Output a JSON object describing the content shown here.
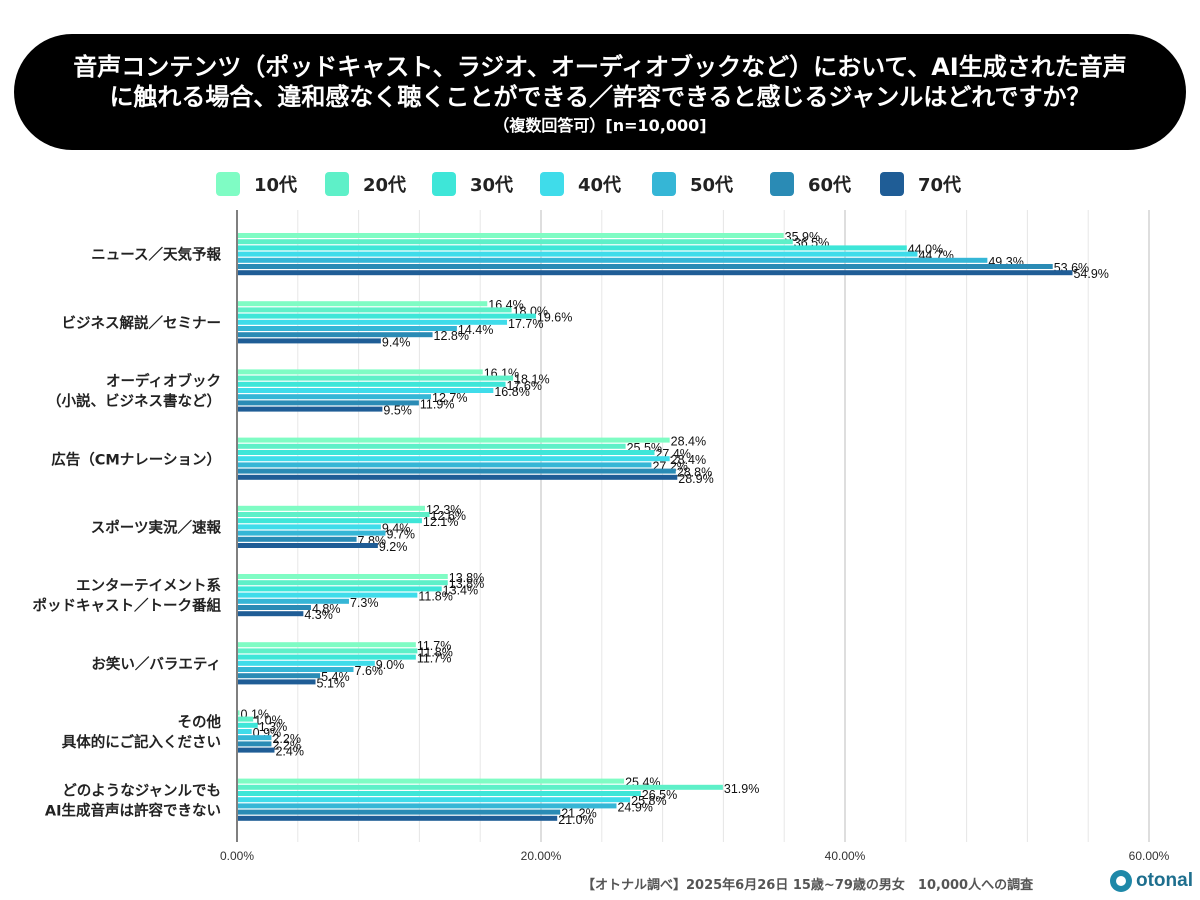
{
  "title": {
    "line1": "音声コンテンツ（ポッドキャスト、ラジオ、オーディオブックなど）において、AI生成された音声",
    "line2": "に触れる場合、違和感なく聴くことができる／許容できると感じるジャンルはどれですか？",
    "line3": "（複数回答可）[n=10,000]"
  },
  "footer": {
    "note": "【オトナル調べ】2025年6月26日 15歳~79歳の男女　10,000人への調査",
    "brand": "otonal"
  },
  "chart_data": {
    "type": "bar",
    "orientation": "horizontal",
    "xlim": [
      0,
      60
    ],
    "x_ticks": [
      "0.00%",
      "20.00%",
      "40.00%",
      "60.00%"
    ],
    "x_tick_values": [
      0,
      20,
      40,
      60
    ],
    "grid": true,
    "legend_position": "top",
    "categories": [
      [
        "ニュース／天気予報"
      ],
      [
        "ビジネス解説／セミナー"
      ],
      [
        "オーディオブック",
        "（小説、ビジネス書など）"
      ],
      [
        "広告（CMナレーション）"
      ],
      [
        "スポーツ実況／速報"
      ],
      [
        "エンターテイメント系",
        "ポッドキャスト／トーク番組"
      ],
      [
        "お笑い／バラエティ"
      ],
      [
        "その他",
        "具体的にご記入ください"
      ],
      [
        "どのようなジャンルでも",
        "AI生成音声は許容できない"
      ]
    ],
    "series": [
      {
        "name": "10代",
        "color": "#7ffcc4",
        "values": [
          35.9,
          16.4,
          16.1,
          28.4,
          12.3,
          13.8,
          11.7,
          0.1,
          25.4
        ]
      },
      {
        "name": "20代",
        "color": "#5ef0c8",
        "values": [
          36.5,
          18.0,
          18.1,
          25.5,
          12.6,
          13.8,
          11.8,
          1.0,
          31.9
        ]
      },
      {
        "name": "30代",
        "color": "#3ee6d8",
        "values": [
          44.0,
          19.6,
          17.6,
          27.4,
          12.1,
          13.4,
          11.7,
          1.3,
          26.5
        ]
      },
      {
        "name": "40代",
        "color": "#3fdcea",
        "values": [
          44.7,
          17.7,
          16.8,
          28.4,
          9.4,
          11.8,
          9.0,
          0.9,
          25.8
        ]
      },
      {
        "name": "50代",
        "color": "#35b6d6",
        "values": [
          49.3,
          14.4,
          12.7,
          27.2,
          9.7,
          7.3,
          7.6,
          2.2,
          24.9
        ]
      },
      {
        "name": "60代",
        "color": "#2a8bb5",
        "values": [
          53.6,
          12.8,
          11.9,
          28.8,
          7.8,
          4.8,
          5.4,
          2.2,
          21.2
        ]
      },
      {
        "name": "70代",
        "color": "#1f5d96",
        "values": [
          54.9,
          9.4,
          9.5,
          28.9,
          9.2,
          4.3,
          5.1,
          2.4,
          21.0
        ]
      }
    ],
    "value_suffix": "%"
  }
}
